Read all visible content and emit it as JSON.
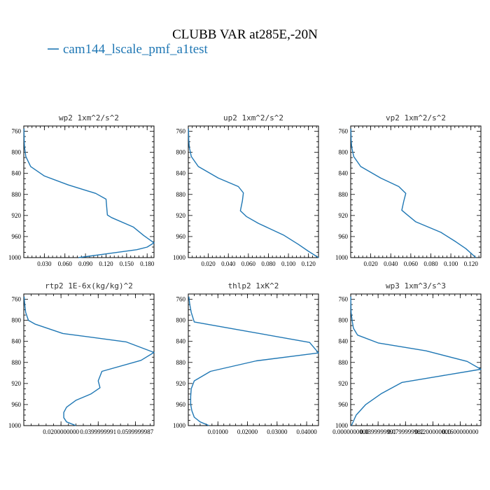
{
  "title": "CLUBB VAR at285E,-20N",
  "legend": {
    "label": "cam144_lscale_pmf_a1test",
    "color": "#1f77b4"
  },
  "chart_data": [
    {
      "type": "line",
      "title": "wp2  1xm^2/s^2",
      "xlabel": "",
      "ylabel": "",
      "ylim": [
        1000,
        750
      ],
      "xlim": [
        0.0,
        0.19
      ],
      "yticks": [
        760,
        800,
        840,
        880,
        920,
        960,
        1000
      ],
      "yticklabels": [
        "760",
        "800",
        "840",
        "880",
        "920",
        "960",
        "1000"
      ],
      "xticks": [
        0.03,
        0.06,
        0.09,
        0.12,
        0.15,
        0.18
      ],
      "xticklabels": [
        "0.030",
        "0.060",
        "0.090",
        "0.120",
        "0.150",
        "0.180"
      ],
      "series": [
        {
          "color": "#1f77b4",
          "x": [
            0.0003,
            0.0005,
            0.001,
            0.003,
            0.01,
            0.03,
            0.065,
            0.105,
            0.12,
            0.121,
            0.122,
            0.128,
            0.16,
            0.175,
            0.19,
            0.18,
            0.165,
            0.12,
            0.08
          ],
          "y": [
            755,
            775,
            790,
            808,
            827,
            845,
            862,
            878,
            889,
            905,
            919,
            924,
            942,
            958,
            972,
            980,
            985,
            993,
            1000
          ]
        }
      ]
    },
    {
      "type": "line",
      "title": "up2  1xm^2/s^2",
      "xlabel": "",
      "ylabel": "",
      "ylim": [
        1000,
        750
      ],
      "xlim": [
        0.0,
        0.13
      ],
      "yticks": [
        760,
        800,
        840,
        880,
        920,
        960,
        1000
      ],
      "yticklabels": [
        "760",
        "800",
        "840",
        "880",
        "920",
        "960",
        "1000"
      ],
      "xticks": [
        0.02,
        0.04,
        0.06,
        0.08,
        0.1,
        0.12
      ],
      "xticklabels": [
        "0.020",
        "0.040",
        "0.060",
        "0.080",
        "0.100",
        "0.120"
      ],
      "series": [
        {
          "color": "#1f77b4",
          "x": [
            0.0002,
            0.0004,
            0.001,
            0.003,
            0.01,
            0.03,
            0.05,
            0.055,
            0.054,
            0.052,
            0.058,
            0.07,
            0.095,
            0.11,
            0.12,
            0.13
          ],
          "y": [
            755,
            775,
            790,
            808,
            827,
            849,
            865,
            877,
            892,
            911,
            922,
            935,
            957,
            975,
            988,
            1000
          ]
        }
      ]
    },
    {
      "type": "line",
      "title": "vp2  1xm^2/s^2",
      "xlabel": "",
      "ylabel": "",
      "ylim": [
        1000,
        750
      ],
      "xlim": [
        0.0,
        0.13
      ],
      "yticks": [
        760,
        800,
        840,
        880,
        920,
        960,
        1000
      ],
      "yticklabels": [
        "760",
        "800",
        "840",
        "880",
        "920",
        "960",
        "1000"
      ],
      "xticks": [
        0.02,
        0.04,
        0.06,
        0.08,
        0.1,
        0.12
      ],
      "xticklabels": [
        "0.020",
        "0.040",
        "0.060",
        "0.080",
        "0.100",
        "0.120"
      ],
      "series": [
        {
          "color": "#1f77b4",
          "x": [
            0.0002,
            0.0004,
            0.001,
            0.003,
            0.01,
            0.03,
            0.048,
            0.055,
            0.053,
            0.051,
            0.056,
            0.065,
            0.09,
            0.105,
            0.115,
            0.125
          ],
          "y": [
            755,
            775,
            790,
            808,
            827,
            849,
            865,
            878,
            893,
            910,
            918,
            932,
            952,
            970,
            983,
            1000
          ]
        }
      ]
    },
    {
      "type": "line",
      "title": "rtp2  1E-6x(kg/kg)^2",
      "xlabel": "",
      "ylabel": "",
      "ylim": [
        1000,
        750
      ],
      "xlim": [
        0.0,
        0.07
      ],
      "yticks": [
        760,
        800,
        840,
        880,
        920,
        960,
        1000
      ],
      "yticklabels": [
        "760",
        "800",
        "840",
        "880",
        "920",
        "960",
        "1000"
      ],
      "xticks": [
        0.02,
        0.04,
        0.06
      ],
      "xticklabels": [
        "0.0200000000",
        "0.0399999991",
        "0.0599999987"
      ],
      "series": [
        {
          "color": "#1f77b4",
          "x": [
            0.0002,
            0.0005,
            0.001,
            0.0025,
            0.006,
            0.021,
            0.055,
            0.07,
            0.063,
            0.042,
            0.04,
            0.041,
            0.036,
            0.028,
            0.023,
            0.0215,
            0.0215,
            0.023,
            0.028
          ],
          "y": [
            755,
            770,
            785,
            800,
            807,
            825,
            841,
            861,
            876,
            897,
            915,
            928,
            940,
            952,
            965,
            975,
            985,
            993,
            1000
          ]
        }
      ]
    },
    {
      "type": "line",
      "title": "thlp2  1xK^2",
      "xlabel": "",
      "ylabel": "",
      "ylim": [
        1000,
        750
      ],
      "xlim": [
        0.0,
        0.044
      ],
      "yticks": [
        760,
        800,
        840,
        880,
        920,
        960,
        1000
      ],
      "yticklabels": [
        "760",
        "800",
        "840",
        "880",
        "920",
        "960",
        "1000"
      ],
      "xticks": [
        0.01,
        0.02,
        0.03,
        0.04
      ],
      "xticklabels": [
        "0.01000",
        "0.02000",
        "0.03000",
        "0.04000"
      ],
      "series": [
        {
          "color": "#1f77b4",
          "x": [
            0.0002,
            0.0005,
            0.001,
            0.002,
            0.014,
            0.041,
            0.044,
            0.023,
            0.0075,
            0.002,
            0.001,
            0.0008,
            0.0008,
            0.0012,
            0.002,
            0.004,
            0.007
          ],
          "y": [
            755,
            770,
            785,
            803,
            815,
            842,
            862,
            877,
            897,
            915,
            930,
            945,
            960,
            972,
            984,
            993,
            1000
          ]
        }
      ]
    },
    {
      "type": "line",
      "title": "wp3  1xm^3/s^3",
      "xlabel": "",
      "ylabel": "",
      "ylim": [
        1000,
        750
      ],
      "xlim": [
        0.0,
        0.19
      ],
      "yticks": [
        760,
        800,
        840,
        880,
        920,
        960,
        1000
      ],
      "yticklabels": [
        "760",
        "800",
        "840",
        "880",
        "920",
        "960",
        "1000"
      ],
      "xticks": [
        0.0,
        0.04,
        0.08,
        0.12,
        0.16
      ],
      "xticklabels": [
        "0.0000000000",
        "0.0399999991",
        "0.0799999982",
        "0.1200000000",
        "0.1600000000"
      ],
      "series": [
        {
          "color": "#1f77b4",
          "x": [
            0.0001,
            0.0003,
            0.0006,
            0.002,
            0.004,
            0.01,
            0.04,
            0.11,
            0.17,
            0.19,
            0.13,
            0.075,
            0.045,
            0.022,
            0.008,
            0.001
          ],
          "y": [
            755,
            770,
            785,
            800,
            815,
            828,
            843,
            858,
            878,
            893,
            906,
            918,
            939,
            960,
            980,
            1000
          ]
        }
      ]
    }
  ]
}
